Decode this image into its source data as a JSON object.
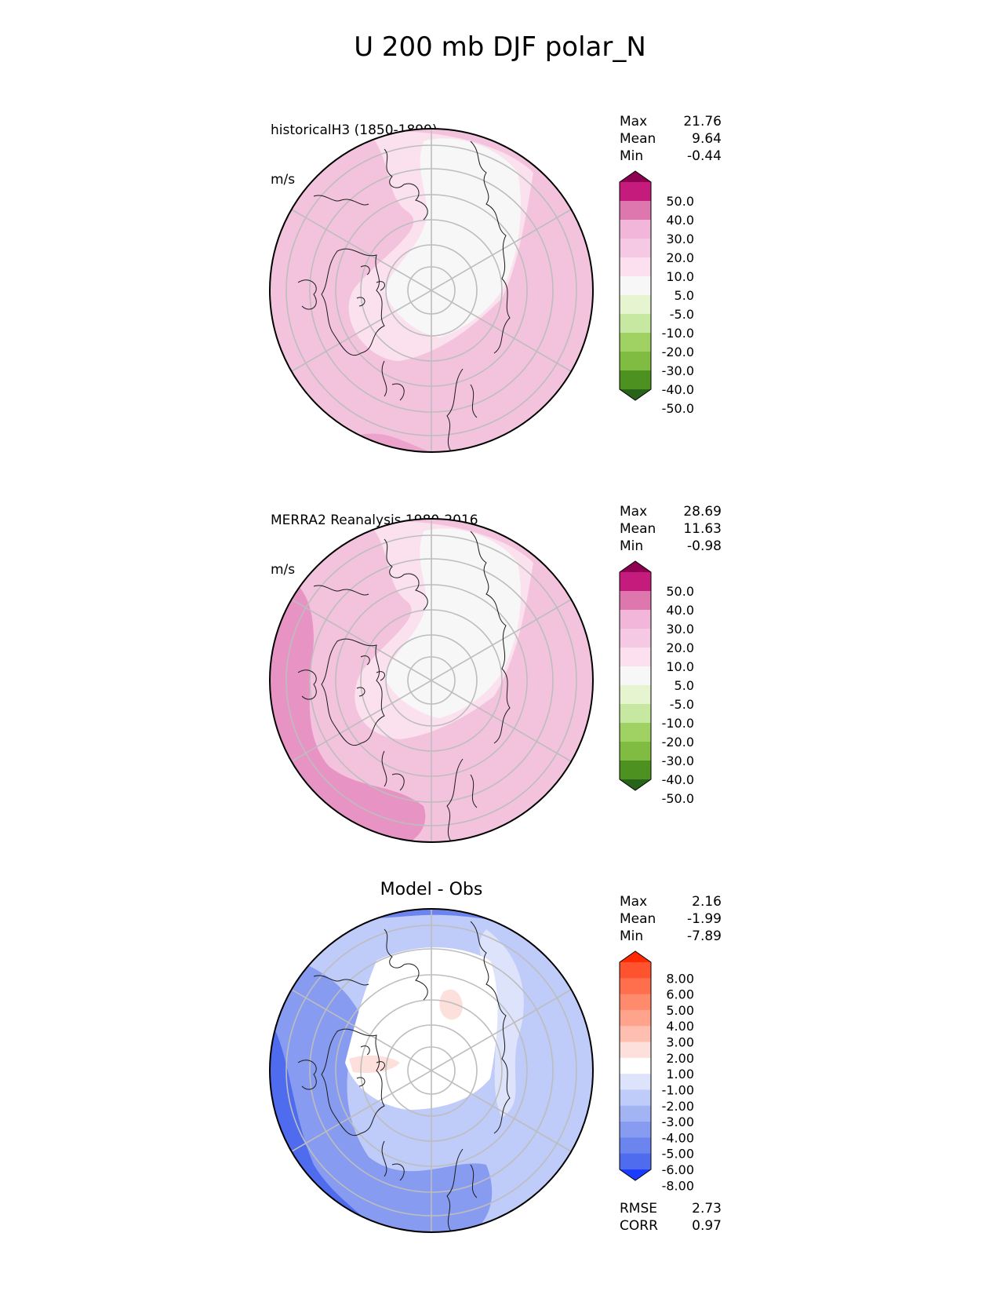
{
  "title": "U 200 mb DJF polar_N",
  "panels": [
    {
      "label": "historicalH3 (1850-1899)",
      "units": "m/s",
      "stats": [
        {
          "name": "Max",
          "value": "21.76"
        },
        {
          "name": "Mean",
          "value": "9.64"
        },
        {
          "name": "Min",
          "value": "-0.44"
        }
      ],
      "colorbar_labels": [
        "50.0",
        "40.0",
        "30.0",
        "20.0",
        "10.0",
        "5.0",
        "-5.0",
        "-10.0",
        "-20.0",
        "-30.0",
        "-40.0",
        "-50.0"
      ]
    },
    {
      "label": "MERRA2 Reanalysis 1980-2016",
      "units": "m/s",
      "stats": [
        {
          "name": "Max",
          "value": "28.69"
        },
        {
          "name": "Mean",
          "value": "11.63"
        },
        {
          "name": "Min",
          "value": "-0.98"
        }
      ],
      "colorbar_labels": [
        "50.0",
        "40.0",
        "30.0",
        "20.0",
        "10.0",
        "5.0",
        "-5.0",
        "-10.0",
        "-20.0",
        "-30.0",
        "-40.0",
        "-50.0"
      ]
    },
    {
      "title": "Model - Obs",
      "stats": [
        {
          "name": "Max",
          "value": "2.16"
        },
        {
          "name": "Mean",
          "value": "-1.99"
        },
        {
          "name": "Min",
          "value": "-7.89"
        }
      ],
      "colorbar_labels": [
        "8.00",
        "6.00",
        "5.00",
        "4.00",
        "3.00",
        "2.00",
        "1.00",
        "-1.00",
        "-2.00",
        "-3.00",
        "-4.00",
        "-5.00",
        "-6.00",
        "-8.00"
      ],
      "metrics": [
        {
          "name": "RMSE",
          "value": "2.73"
        },
        {
          "name": "CORR",
          "value": "0.97"
        }
      ]
    }
  ],
  "colors": {
    "wind_colorbar": [
      "#8e0152",
      "#c51b7d",
      "#de77ae",
      "#f1b6da",
      "#f5c8e3",
      "#fde0ef",
      "#f7f7f7",
      "#e6f5d0",
      "#c6e8a0",
      "#9fd262",
      "#7fbc41",
      "#4d9221",
      "#276419"
    ],
    "diff_colorbar": [
      "#ff2a00",
      "#ff5330",
      "#ff6f4d",
      "#ff8a6c",
      "#ffa38c",
      "#ffbfb0",
      "#fde0db",
      "#ffffff",
      "#dde3fb",
      "#bfcbf8",
      "#a3b4f5",
      "#879cf1",
      "#6c85ee",
      "#4f6cee",
      "#1a3cff"
    ]
  }
}
